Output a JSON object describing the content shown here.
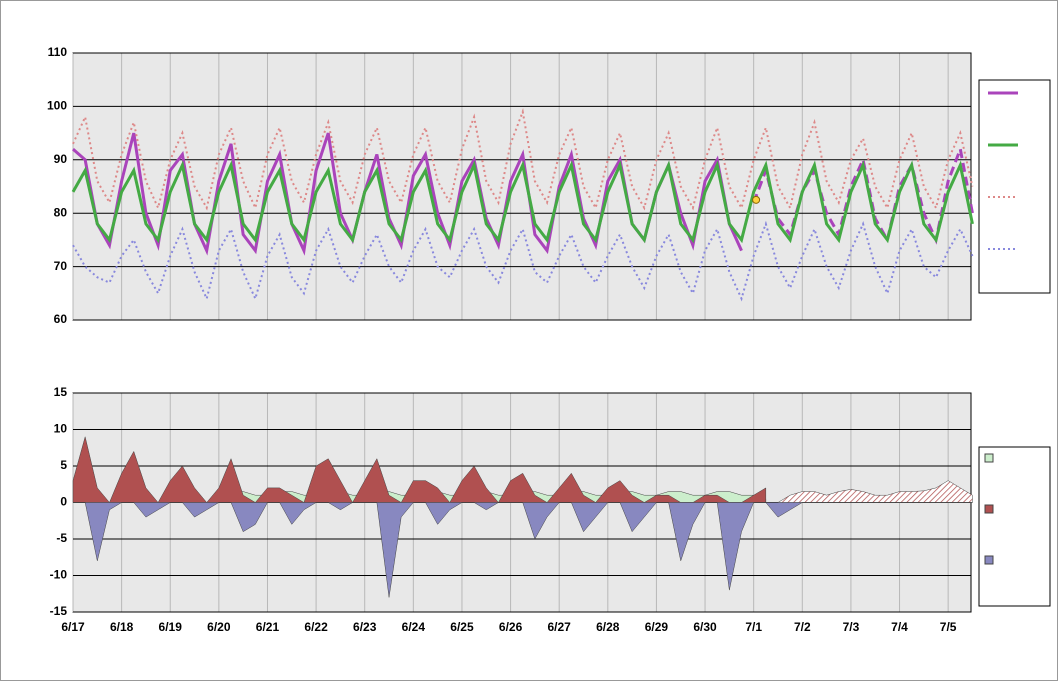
{
  "chart_data": [
    {
      "type": "line",
      "xlim": [
        0,
        18.47
      ],
      "ylim": [
        60,
        110
      ],
      "yticks": [
        60,
        70,
        80,
        90,
        100,
        110
      ],
      "vgrid": [
        0,
        1,
        2,
        3,
        4,
        5,
        6,
        7,
        8,
        9,
        10,
        11,
        12,
        13,
        14,
        15,
        16,
        17,
        18
      ],
      "x": [
        0,
        0.25,
        0.5,
        0.75,
        1,
        1.25,
        1.5,
        1.75,
        2,
        2.25,
        2.5,
        2.75,
        3,
        3.25,
        3.5,
        3.75,
        4,
        4.25,
        4.5,
        4.75,
        5,
        5.25,
        5.5,
        5.75,
        6,
        6.25,
        6.5,
        6.75,
        7,
        7.25,
        7.5,
        7.75,
        8,
        8.25,
        8.5,
        8.75,
        9,
        9.25,
        9.5,
        9.75,
        10,
        10.25,
        10.5,
        10.75,
        11,
        11.25,
        11.5,
        11.75,
        12,
        12.25,
        12.5,
        12.75,
        13,
        13.25,
        13.5,
        13.75,
        14,
        14.25,
        14.5,
        14.75,
        15,
        15.25,
        15.5,
        15.75,
        16,
        16.25,
        16.5,
        16.75,
        17,
        17.25,
        17.5,
        17.75,
        18,
        18.25,
        18.5
      ],
      "series": [
        {
          "color": "#aa44bb",
          "style": "solid",
          "forecast_from": 14,
          "values": [
            92,
            90,
            78,
            74,
            86,
            95,
            80,
            74,
            88,
            91,
            78,
            73,
            86,
            93,
            76,
            73,
            86,
            91,
            78,
            73,
            88,
            95,
            80,
            75,
            84,
            91,
            79,
            74,
            87,
            91,
            80,
            74,
            86,
            90,
            79,
            74,
            86,
            91,
            76,
            73,
            85,
            91,
            79,
            74,
            86,
            90,
            78,
            75,
            84,
            89,
            80,
            74,
            86,
            90,
            78,
            73,
            82,
            88,
            79,
            76,
            84,
            88,
            80,
            76,
            85,
            90,
            79,
            75,
            85,
            89,
            80,
            75,
            86,
            92,
            80
          ]
        },
        {
          "color": "#44aa44",
          "style": "solid",
          "values": [
            84,
            88,
            78,
            75,
            84,
            88,
            78,
            75,
            84,
            89,
            78,
            75,
            84,
            89,
            78,
            75,
            84,
            88,
            78,
            75,
            84,
            88,
            78,
            75,
            84,
            88,
            78,
            75,
            84,
            88,
            78,
            75,
            84,
            89,
            78,
            75,
            84,
            89,
            78,
            75,
            84,
            89,
            78,
            75,
            84,
            89,
            78,
            75,
            84,
            89,
            78,
            75,
            84,
            89,
            78,
            75,
            84,
            89,
            78,
            75,
            84,
            89,
            78,
            75,
            84,
            89,
            78,
            75,
            84,
            89,
            78,
            75,
            84,
            89,
            78
          ]
        },
        {
          "color": "#dd8888",
          "style": "dotted",
          "values": [
            93,
            98,
            86,
            82,
            91,
            97,
            86,
            81,
            90,
            95,
            85,
            81,
            91,
            96,
            86,
            81,
            91,
            96,
            86,
            82,
            91,
            97,
            86,
            82,
            91,
            96,
            86,
            82,
            91,
            96,
            86,
            82,
            92,
            98,
            86,
            82,
            93,
            99,
            86,
            82,
            91,
            96,
            85,
            81,
            90,
            95,
            85,
            81,
            90,
            95,
            85,
            81,
            90,
            96,
            85,
            81,
            90,
            96,
            85,
            81,
            91,
            97,
            86,
            82,
            90,
            94,
            85,
            81,
            90,
            95,
            85,
            81,
            90,
            95,
            85
          ]
        },
        {
          "color": "#8888dd",
          "style": "dotted",
          "values": [
            74,
            70,
            68,
            67,
            72,
            75,
            69,
            65,
            72,
            77,
            69,
            64,
            73,
            77,
            69,
            64,
            72,
            76,
            68,
            65,
            73,
            77,
            70,
            67,
            72,
            76,
            70,
            67,
            73,
            77,
            70,
            68,
            73,
            77,
            70,
            67,
            73,
            77,
            69,
            67,
            72,
            76,
            70,
            67,
            72,
            76,
            70,
            66,
            72,
            76,
            69,
            65,
            73,
            77,
            69,
            64,
            72,
            78,
            70,
            66,
            72,
            77,
            70,
            66,
            73,
            78,
            70,
            65,
            73,
            77,
            70,
            68,
            73,
            77,
            72
          ]
        }
      ],
      "marker": {
        "x": 14.05,
        "y": 82.5,
        "color": "#ffd040"
      }
    },
    {
      "type": "area",
      "xlim": [
        0,
        18.47
      ],
      "ylim": [
        -15,
        15
      ],
      "yticks": [
        -15,
        -10,
        -5,
        0,
        5,
        10,
        15
      ],
      "xticks": [
        {
          "value": 0,
          "label": "6/17"
        },
        {
          "value": 1,
          "label": "6/18"
        },
        {
          "value": 2,
          "label": "6/19"
        },
        {
          "value": 3,
          "label": "6/20"
        },
        {
          "value": 4,
          "label": "6/21"
        },
        {
          "value": 5,
          "label": "6/22"
        },
        {
          "value": 6,
          "label": "6/23"
        },
        {
          "value": 7,
          "label": "6/24"
        },
        {
          "value": 8,
          "label": "6/25"
        },
        {
          "value": 9,
          "label": "6/26"
        },
        {
          "value": 10,
          "label": "6/27"
        },
        {
          "value": 11,
          "label": "6/28"
        },
        {
          "value": 12,
          "label": "6/29"
        },
        {
          "value": 13,
          "label": "6/30"
        },
        {
          "value": 14,
          "label": "7/1"
        },
        {
          "value": 15,
          "label": "7/2"
        },
        {
          "value": 16,
          "label": "7/3"
        },
        {
          "value": 17,
          "label": "7/4"
        },
        {
          "value": 18,
          "label": "7/5"
        }
      ],
      "x": [
        0,
        0.25,
        0.5,
        0.75,
        1,
        1.25,
        1.5,
        1.75,
        2,
        2.25,
        2.5,
        2.75,
        3,
        3.25,
        3.5,
        3.75,
        4,
        4.25,
        4.5,
        4.75,
        5,
        5.25,
        5.5,
        5.75,
        6,
        6.25,
        6.5,
        6.75,
        7,
        7.25,
        7.5,
        7.75,
        8,
        8.25,
        8.5,
        8.75,
        9,
        9.25,
        9.5,
        9.75,
        10,
        10.25,
        10.5,
        10.75,
        11,
        11.25,
        11.5,
        11.75,
        12,
        12.25,
        12.5,
        12.75,
        13,
        13.25,
        13.5,
        13.75,
        14,
        14.25,
        14.5,
        14.75,
        15,
        15.25,
        15.5,
        15.75,
        16,
        16.25,
        16.5,
        16.75,
        17,
        17.25,
        17.5,
        17.75,
        18,
        18.25,
        18.5
      ],
      "series": [
        {
          "color": "#cceecc",
          "values": [
            null,
            null,
            null,
            null,
            null,
            null,
            null,
            null,
            null,
            null,
            null,
            null,
            1,
            1.5,
            1.5,
            1,
            1,
            1.5,
            1.5,
            1,
            1,
            1.5,
            1.5,
            1,
            1,
            1.5,
            1.5,
            1,
            1,
            1.5,
            1.5,
            1,
            1,
            1.5,
            1.5,
            1,
            1,
            1.5,
            1.5,
            1,
            1,
            1.5,
            1.5,
            1,
            1,
            1.5,
            1.5,
            1,
            1,
            1.5,
            1.5,
            1,
            1,
            1.5,
            1.5,
            1,
            1,
            0.5,
            null,
            null,
            null,
            null,
            null,
            null,
            null,
            null,
            null,
            null,
            null,
            null,
            null,
            null,
            null,
            null,
            null
          ]
        },
        {
          "color": "#b05050",
          "hatch_from": 14.5,
          "values": [
            3,
            9,
            2,
            0,
            4,
            7,
            2,
            0,
            3,
            5,
            2,
            0,
            2,
            6,
            1,
            0,
            2,
            2,
            1,
            0,
            5,
            6,
            3,
            0,
            3,
            6,
            1,
            0,
            3,
            3,
            2,
            0,
            3,
            5,
            2,
            0,
            3,
            4,
            1,
            0,
            2,
            4,
            1,
            0,
            2,
            3,
            1,
            0,
            1,
            1,
            0,
            0,
            1,
            1,
            0,
            0,
            1,
            2,
            0,
            1,
            1.5,
            1.5,
            1,
            1.5,
            1.8,
            1.5,
            1,
            1,
            1.5,
            1.5,
            1.6,
            2,
            3,
            2,
            1
          ]
        },
        {
          "color": "#8888c0",
          "values": [
            0,
            0,
            -8,
            -1,
            0,
            0,
            -2,
            -1,
            0,
            0,
            -2,
            -1,
            0,
            0,
            -4,
            -3,
            0,
            0,
            -3,
            -1,
            0,
            0,
            -1,
            0,
            0,
            0,
            -13,
            -2,
            0,
            0,
            -3,
            -1,
            0,
            0,
            -1,
            0,
            0,
            0,
            -5,
            -2,
            0,
            0,
            -4,
            -2,
            0,
            0,
            -4,
            -2,
            0,
            0,
            -8,
            -3,
            0,
            0,
            -12,
            -4,
            0,
            0,
            -2,
            -1,
            0,
            0,
            0,
            0,
            0,
            0,
            0,
            0,
            0,
            0,
            0,
            0,
            0,
            0,
            0
          ]
        }
      ]
    }
  ]
}
